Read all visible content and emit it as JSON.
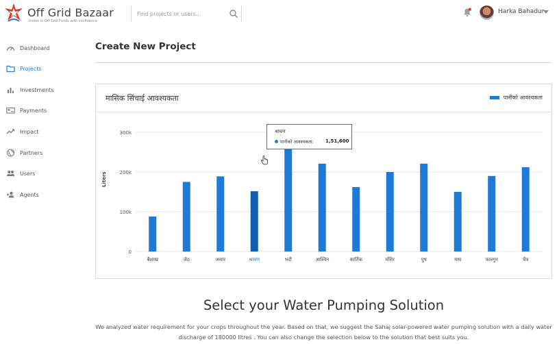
{
  "header": {
    "brand": "Off Grid Bazaar",
    "tagline": "Invest in Off Grid Funds with confidence",
    "search_placeholder": "Find projects or users...",
    "user_name": "Harka Bahadur"
  },
  "sidebar": {
    "items": [
      {
        "label": "Dashboard",
        "icon": "dashboard-icon"
      },
      {
        "label": "Projects",
        "icon": "folder-icon",
        "active": true
      },
      {
        "label": "Investments",
        "icon": "bar-chart-icon"
      },
      {
        "label": "Payments",
        "icon": "payment-icon"
      },
      {
        "label": "Impact",
        "icon": "trend-icon"
      },
      {
        "label": "Partners",
        "icon": "globe-icon"
      },
      {
        "label": "Users",
        "icon": "users-icon"
      },
      {
        "label": "Agents",
        "icon": "agent-icon"
      }
    ]
  },
  "main": {
    "page_title": "Create New Project",
    "section_title": "Select your Water Pumping Solution",
    "section_desc": "We analyzed water requirement for your crops throughout the year. Based on that, we suggest the Sahaj solar-powered water pumping solution with a daily water discharge of 180000 litres . You can also change the selection below to the solution that best suits you."
  },
  "chart_data": {
    "type": "bar",
    "title": "मासिक सिंचाई आवश्यकता",
    "ylabel": "Liters",
    "xlabel": "",
    "ylim": [
      0,
      300000
    ],
    "yticks": [
      0,
      100000,
      200000,
      300000
    ],
    "ytick_labels": [
      "0",
      "100k",
      "200k",
      "300k"
    ],
    "grid": true,
    "legend_position": "top-right",
    "categories": [
      "बैशाख",
      "जेठ",
      "असार",
      "श्रावण",
      "भदौ",
      "आश्विन",
      "कार्तिक",
      "मंसिर",
      "पुष",
      "माघ",
      "फाल्गुन",
      "चैत्र"
    ],
    "series": [
      {
        "name": "पानीको आवश्यकता",
        "color": "#1e7ad6",
        "values": [
          88000,
          175000,
          189000,
          151600,
          262000,
          221000,
          162000,
          200000,
          221000,
          150000,
          190000,
          212000
        ]
      }
    ],
    "highlighted_index": 3,
    "highlight_color": "#0f5fb3",
    "tooltip": {
      "category": "श्रावण",
      "series_label": "पानीको आवश्यकता:",
      "value_label": "1,51,600"
    }
  }
}
